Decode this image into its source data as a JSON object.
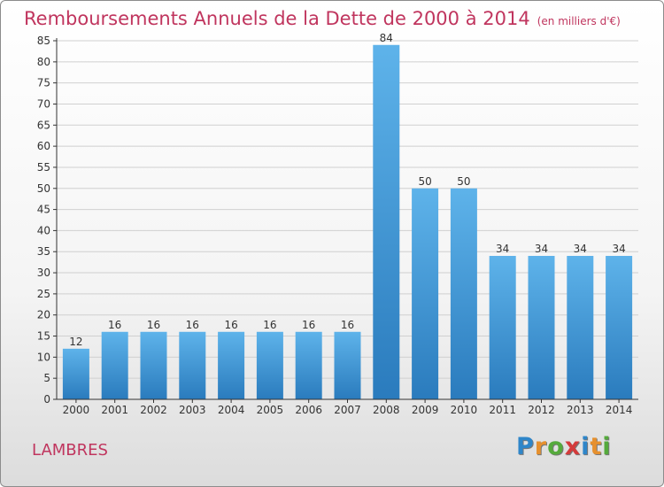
{
  "chart_title": "Remboursements Annuels de la Dette de 2000 à 2014",
  "chart_subtitle": "(en milliers d'€)",
  "commune": "LAMBRES",
  "logo": {
    "letters": [
      "P",
      "r",
      "o",
      "x",
      "i",
      "t",
      "i"
    ],
    "colors": [
      "#2f86c9",
      "#e6902e",
      "#55aa3c",
      "#d43b3b",
      "#2f86c9",
      "#e6902e",
      "#55aa3c"
    ]
  },
  "colors": {
    "title": "#c0355e",
    "bar_top": "#5eb3ea",
    "bar_bottom": "#2a7bbd",
    "axis": "#333333",
    "grid": "#d0d0d0"
  },
  "chart_data": {
    "type": "bar",
    "categories": [
      "2000",
      "2001",
      "2002",
      "2003",
      "2004",
      "2005",
      "2006",
      "2007",
      "2008",
      "2009",
      "2010",
      "2011",
      "2012",
      "2013",
      "2014"
    ],
    "values": [
      12,
      16,
      16,
      16,
      16,
      16,
      16,
      16,
      84,
      50,
      50,
      34,
      34,
      34,
      34
    ],
    "ylim": [
      0,
      85
    ],
    "yticks": [
      0,
      5,
      10,
      15,
      20,
      25,
      30,
      35,
      40,
      45,
      50,
      55,
      60,
      65,
      70,
      75,
      80,
      85
    ],
    "grid": true,
    "data_labels": true
  }
}
